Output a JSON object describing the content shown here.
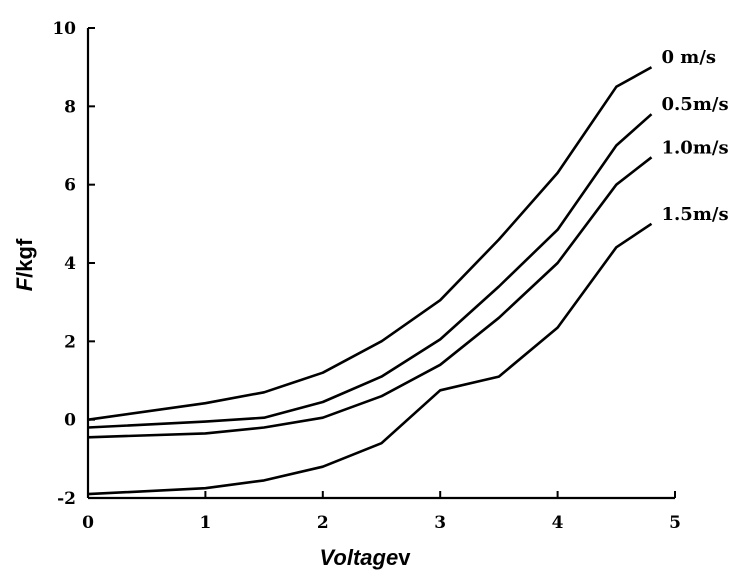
{
  "chart_data": {
    "type": "line",
    "xlabel": {
      "italic": "Voltage",
      "unit": "v"
    },
    "ylabel": {
      "italic": "F",
      "unit": "kgf"
    },
    "xlim": [
      0,
      5
    ],
    "ylim": [
      -2,
      10
    ],
    "xticks": [
      0,
      1,
      2,
      3,
      4,
      5
    ],
    "yticks": [
      -2,
      0,
      2,
      4,
      6,
      8,
      10
    ],
    "grid": false,
    "legend": "inline labels at line ends, right",
    "series": [
      {
        "name": "0 m/s",
        "x": [
          0,
          1,
          1.5,
          2,
          2.5,
          3,
          3.5,
          4,
          4.5,
          4.8
        ],
        "y": [
          0.0,
          0.42,
          0.7,
          1.2,
          2.0,
          3.05,
          4.6,
          6.3,
          8.5,
          9.0
        ]
      },
      {
        "name": "0.5m/s",
        "x": [
          0,
          1,
          1.5,
          2,
          2.5,
          3,
          3.5,
          4,
          4.5,
          4.8
        ],
        "y": [
          -0.2,
          -0.05,
          0.05,
          0.45,
          1.1,
          2.05,
          3.4,
          4.85,
          7.0,
          7.8
        ]
      },
      {
        "name": "1.0m/s",
        "x": [
          0,
          1,
          1.5,
          2,
          2.5,
          3,
          3.5,
          4,
          4.5,
          4.8
        ],
        "y": [
          -0.45,
          -0.35,
          -0.2,
          0.05,
          0.6,
          1.4,
          2.6,
          4.0,
          6.0,
          6.7
        ]
      },
      {
        "name": "1.5m/s",
        "x": [
          0,
          1,
          1.5,
          2,
          2.5,
          3,
          3.5,
          4,
          4.5,
          4.8
        ],
        "y": [
          -1.9,
          -1.75,
          -1.55,
          -1.2,
          -0.6,
          0.75,
          1.1,
          2.35,
          4.4,
          5.0
        ]
      }
    ]
  }
}
